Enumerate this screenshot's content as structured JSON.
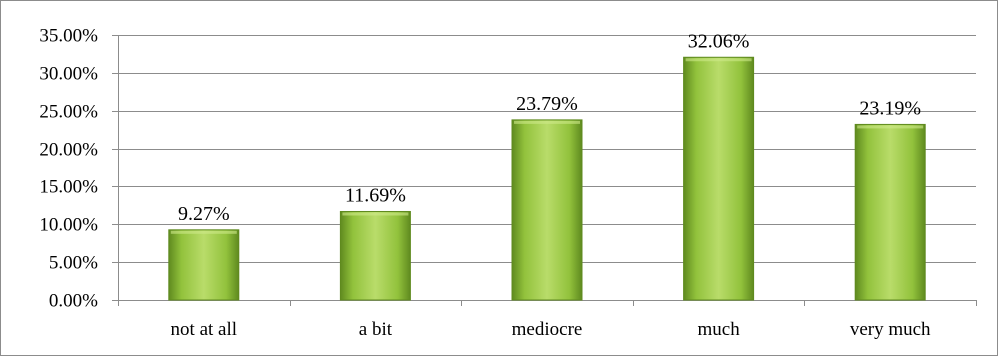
{
  "chart_data": {
    "type": "bar",
    "title": "",
    "xlabel": "",
    "ylabel": "",
    "categories": [
      "not at all",
      "a bit",
      "mediocre",
      "much",
      "very much"
    ],
    "values": [
      9.27,
      11.69,
      23.79,
      32.06,
      23.19
    ],
    "data_labels": [
      "9.27%",
      "11.69%",
      "23.79%",
      "32.06%",
      "23.19%"
    ],
    "ylim": [
      0,
      35
    ],
    "yticks": [
      0,
      5,
      10,
      15,
      20,
      25,
      30,
      35
    ],
    "ytick_labels": [
      "0.00%",
      "5.00%",
      "10.00%",
      "15.00%",
      "20.00%",
      "25.00%",
      "30.00%",
      "35.00%"
    ],
    "grid": true,
    "legend": "none",
    "colors": {
      "bar_light": "#b9dc6a",
      "bar_mid": "#92c23c",
      "bar_dark": "#5f8a1f",
      "grid": "#8c8c8c",
      "axis": "#8c8c8c"
    }
  }
}
